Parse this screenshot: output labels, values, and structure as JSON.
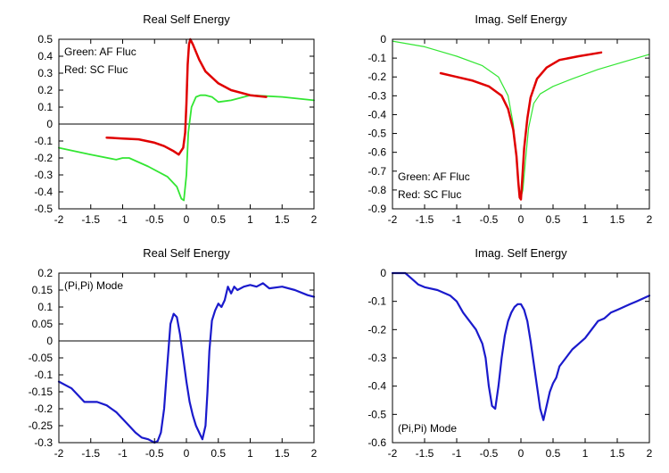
{
  "chart_data": [
    {
      "type": "line",
      "title": "Real Self Energy",
      "xlim": [
        -2,
        2
      ],
      "ylim": [
        -0.5,
        0.5
      ],
      "xticks": [
        -2,
        -1.5,
        -1,
        -0.5,
        0,
        0.5,
        1,
        1.5,
        2
      ],
      "yticks": [
        -0.5,
        -0.4,
        -0.3,
        -0.2,
        -0.1,
        0,
        0.1,
        0.2,
        0.3,
        0.4,
        0.5
      ],
      "zero_line": true,
      "legend": [
        "Green: AF Fluc",
        "Red: SC Fluc"
      ],
      "legend_position": "top-left",
      "series": [
        {
          "name": "Green: AF Fluc",
          "color": "#33e633",
          "width": 1.8,
          "x": [
            -2,
            -1.5,
            -1.1,
            -1.0,
            -0.9,
            -0.6,
            -0.3,
            -0.15,
            -0.08,
            -0.04,
            0.0,
            0.03,
            0.08,
            0.15,
            0.22,
            0.3,
            0.4,
            0.5,
            0.7,
            1.0,
            1.5,
            2.0
          ],
          "y": [
            -0.14,
            -0.18,
            -0.21,
            -0.2,
            -0.2,
            -0.25,
            -0.31,
            -0.37,
            -0.44,
            -0.45,
            -0.3,
            -0.05,
            0.1,
            0.16,
            0.17,
            0.17,
            0.16,
            0.13,
            0.14,
            0.17,
            0.16,
            0.14
          ]
        },
        {
          "name": "Red: SC Fluc",
          "color": "#e00000",
          "width": 2.5,
          "x": [
            -1.25,
            -1.0,
            -0.75,
            -0.5,
            -0.35,
            -0.2,
            -0.12,
            -0.05,
            -0.02,
            0.0,
            0.02,
            0.04,
            0.06,
            0.1,
            0.2,
            0.3,
            0.5,
            0.7,
            1.0,
            1.25
          ],
          "y": [
            -0.08,
            -0.085,
            -0.09,
            -0.11,
            -0.13,
            -0.16,
            -0.18,
            -0.14,
            -0.05,
            0.12,
            0.35,
            0.47,
            0.5,
            0.47,
            0.38,
            0.31,
            0.24,
            0.2,
            0.17,
            0.16
          ]
        }
      ]
    },
    {
      "type": "line",
      "title": "Imag. Self Energy",
      "xlim": [
        -2,
        2
      ],
      "ylim": [
        -0.9,
        0
      ],
      "xticks": [
        -2,
        -1.5,
        -1,
        -0.5,
        0,
        0.5,
        1,
        1.5,
        2
      ],
      "yticks": [
        -0.9,
        -0.8,
        -0.7,
        -0.6,
        -0.5,
        -0.4,
        -0.3,
        -0.2,
        -0.1,
        0
      ],
      "zero_line": false,
      "legend": [
        "Green: AF Fluc",
        "Red: SC Fluc"
      ],
      "legend_position": "bottom-left",
      "series": [
        {
          "name": "Green: AF Fluc",
          "color": "#33e633",
          "width": 1.2,
          "x": [
            -2,
            -1.5,
            -1.0,
            -0.6,
            -0.35,
            -0.2,
            -0.12,
            -0.07,
            -0.03,
            0.0,
            0.03,
            0.07,
            0.12,
            0.2,
            0.3,
            0.5,
            0.8,
            1.2,
            1.6,
            2.0
          ],
          "y": [
            -0.01,
            -0.04,
            -0.09,
            -0.14,
            -0.2,
            -0.3,
            -0.45,
            -0.62,
            -0.78,
            -0.84,
            -0.8,
            -0.65,
            -0.47,
            -0.34,
            -0.29,
            -0.25,
            -0.21,
            -0.16,
            -0.12,
            -0.08
          ]
        },
        {
          "name": "Red: SC Fluc",
          "color": "#e00000",
          "width": 2.5,
          "x": [
            -1.25,
            -1.0,
            -0.75,
            -0.5,
            -0.3,
            -0.2,
            -0.12,
            -0.07,
            -0.04,
            -0.02,
            0.0,
            0.02,
            0.05,
            0.1,
            0.15,
            0.25,
            0.4,
            0.6,
            0.9,
            1.25
          ],
          "y": [
            -0.18,
            -0.2,
            -0.22,
            -0.25,
            -0.3,
            -0.37,
            -0.48,
            -0.62,
            -0.76,
            -0.84,
            -0.85,
            -0.75,
            -0.58,
            -0.42,
            -0.31,
            -0.21,
            -0.15,
            -0.11,
            -0.09,
            -0.07
          ]
        }
      ]
    },
    {
      "type": "line",
      "title": "Real Self Energy",
      "xlim": [
        -2,
        2
      ],
      "ylim": [
        -0.3,
        0.2
      ],
      "xticks": [
        -2,
        -1.5,
        -1,
        -0.5,
        0,
        0.5,
        1,
        1.5,
        2
      ],
      "yticks": [
        -0.3,
        -0.25,
        -0.2,
        -0.15,
        -0.1,
        -0.05,
        0,
        0.05,
        0.1,
        0.15,
        0.2
      ],
      "zero_line": true,
      "legend": [
        "(Pi,Pi) Mode"
      ],
      "legend_position": "top-left",
      "series": [
        {
          "name": "(Pi,Pi) Mode",
          "color": "#1a1acc",
          "width": 2.2,
          "x": [
            -2.0,
            -1.8,
            -1.6,
            -1.5,
            -1.4,
            -1.25,
            -1.1,
            -1.0,
            -0.9,
            -0.8,
            -0.7,
            -0.6,
            -0.5,
            -0.45,
            -0.4,
            -0.35,
            -0.3,
            -0.25,
            -0.2,
            -0.15,
            -0.1,
            -0.05,
            0.0,
            0.05,
            0.1,
            0.15,
            0.2,
            0.25,
            0.3,
            0.33,
            0.36,
            0.4,
            0.45,
            0.5,
            0.55,
            0.6,
            0.65,
            0.7,
            0.75,
            0.8,
            0.9,
            1.0,
            1.1,
            1.2,
            1.3,
            1.5,
            1.7,
            1.9,
            2.0
          ],
          "y": [
            -0.12,
            -0.14,
            -0.18,
            -0.18,
            -0.18,
            -0.19,
            -0.21,
            -0.23,
            -0.25,
            -0.27,
            -0.285,
            -0.29,
            -0.3,
            -0.295,
            -0.27,
            -0.2,
            -0.07,
            0.05,
            0.08,
            0.07,
            0.02,
            -0.05,
            -0.12,
            -0.18,
            -0.22,
            -0.25,
            -0.27,
            -0.29,
            -0.25,
            -0.15,
            -0.03,
            0.06,
            0.09,
            0.11,
            0.1,
            0.12,
            0.16,
            0.14,
            0.16,
            0.15,
            0.16,
            0.165,
            0.16,
            0.17,
            0.155,
            0.16,
            0.15,
            0.135,
            0.13
          ]
        }
      ]
    },
    {
      "type": "line",
      "title": "Imag. Self Energy",
      "xlim": [
        -2,
        2
      ],
      "ylim": [
        -0.6,
        0
      ],
      "xticks": [
        -2,
        -1.5,
        -1,
        -0.5,
        0,
        0.5,
        1,
        1.5,
        2
      ],
      "yticks": [
        -0.6,
        -0.5,
        -0.4,
        -0.3,
        -0.2,
        -0.1,
        0
      ],
      "zero_line": false,
      "legend": [
        "(Pi,Pi) Mode"
      ],
      "legend_position": "bottom-left",
      "series": [
        {
          "name": "(Pi,Pi) Mode",
          "color": "#1a1acc",
          "width": 2.2,
          "x": [
            -2.0,
            -1.8,
            -1.7,
            -1.6,
            -1.5,
            -1.3,
            -1.1,
            -1.0,
            -0.9,
            -0.8,
            -0.7,
            -0.6,
            -0.55,
            -0.5,
            -0.45,
            -0.4,
            -0.35,
            -0.3,
            -0.25,
            -0.2,
            -0.15,
            -0.1,
            -0.05,
            0.0,
            0.05,
            0.1,
            0.15,
            0.2,
            0.25,
            0.3,
            0.35,
            0.4,
            0.45,
            0.5,
            0.55,
            0.6,
            0.7,
            0.8,
            0.9,
            1.0,
            1.1,
            1.2,
            1.3,
            1.4,
            1.5,
            1.6,
            1.7,
            1.8,
            1.9,
            2.0
          ],
          "y": [
            0.0,
            0.0,
            -0.02,
            -0.04,
            -0.05,
            -0.06,
            -0.08,
            -0.1,
            -0.14,
            -0.17,
            -0.2,
            -0.25,
            -0.3,
            -0.4,
            -0.47,
            -0.48,
            -0.4,
            -0.3,
            -0.22,
            -0.17,
            -0.14,
            -0.12,
            -0.11,
            -0.11,
            -0.13,
            -0.17,
            -0.24,
            -0.32,
            -0.4,
            -0.48,
            -0.52,
            -0.47,
            -0.42,
            -0.39,
            -0.37,
            -0.33,
            -0.3,
            -0.27,
            -0.25,
            -0.23,
            -0.2,
            -0.17,
            -0.16,
            -0.14,
            -0.13,
            -0.12,
            -0.11,
            -0.1,
            -0.09,
            -0.08
          ]
        }
      ]
    }
  ]
}
